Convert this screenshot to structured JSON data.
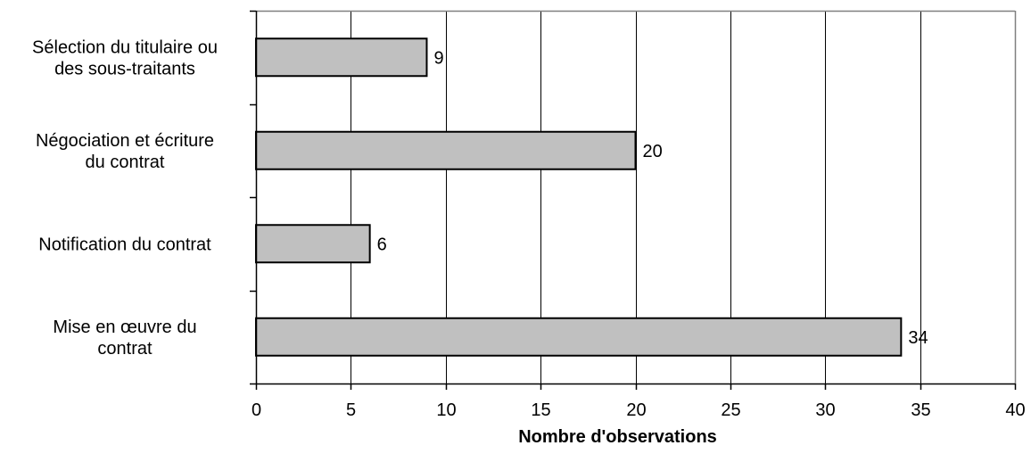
{
  "chart_data": {
    "type": "bar",
    "orientation": "horizontal",
    "categories": [
      [
        "Sélection du titulaire ou",
        "des sous-traitants"
      ],
      [
        "Négociation et écriture",
        "du contrat"
      ],
      [
        "Notification du contrat"
      ],
      [
        "Mise en œuvre du",
        "contrat"
      ]
    ],
    "values": [
      9,
      20,
      6,
      34
    ],
    "data_labels": [
      "9",
      "20",
      "6",
      "34"
    ],
    "xlabel": "Nombre d'observations",
    "ylabel": "",
    "xlim": [
      0,
      40
    ],
    "xticks": [
      0,
      5,
      10,
      15,
      20,
      25,
      30,
      35,
      40
    ],
    "grid": "vertical",
    "legend": "none",
    "bar_color": "#c0c0c0",
    "bar_edge_color": "#000000",
    "frame_color": "#808080",
    "gridline_color": "#000000"
  }
}
